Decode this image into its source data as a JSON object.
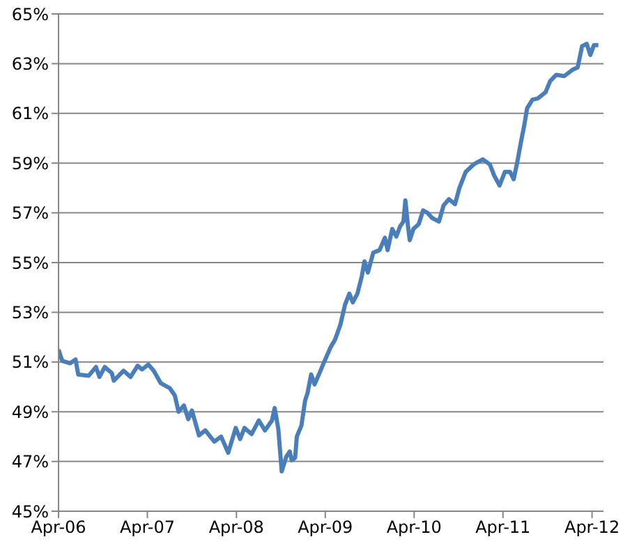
{
  "chart_data": {
    "type": "line",
    "x": [
      "2006-04-01",
      "2006-04-16",
      "2006-05-19",
      "2006-06-10",
      "2006-06-21",
      "2006-08-03",
      "2006-09-02",
      "2006-09-16",
      "2006-10-08",
      "2006-11-06",
      "2006-11-14",
      "2006-12-24",
      "2007-01-22",
      "2007-02-20",
      "2007-03-10",
      "2007-04-05",
      "2007-04-27",
      "2007-05-26",
      "2007-07-02",
      "2007-07-23",
      "2007-08-07",
      "2007-08-29",
      "2007-09-16",
      "2007-10-01",
      "2007-10-30",
      "2007-11-25",
      "2008-01-01",
      "2008-01-29",
      "2008-02-27",
      "2008-03-29",
      "2008-04-16",
      "2008-05-04",
      "2008-06-02",
      "2008-07-02",
      "2008-07-27",
      "2008-08-25",
      "2008-09-05",
      "2008-09-20",
      "2008-10-04",
      "2008-10-23",
      "2008-11-06",
      "2008-11-14",
      "2008-11-28",
      "2008-12-05",
      "2008-12-24",
      "2009-01-08",
      "2009-01-18",
      "2009-02-02",
      "2009-02-16",
      "2009-03-10",
      "2009-03-25",
      "2009-04-23",
      "2009-05-11",
      "2009-06-02",
      "2009-06-21",
      "2009-07-09",
      "2009-07-23",
      "2009-08-11",
      "2009-08-29",
      "2009-09-09",
      "2009-09-23",
      "2009-10-15",
      "2009-11-10",
      "2009-12-02",
      "2009-12-13",
      "2010-01-01",
      "2010-01-18",
      "2010-02-02",
      "2010-02-16",
      "2010-02-24",
      "2010-03-07",
      "2010-03-14",
      "2010-03-29",
      "2010-04-20",
      "2010-05-08",
      "2010-05-26",
      "2010-06-13",
      "2010-07-12",
      "2010-07-31",
      "2010-08-22",
      "2010-09-16",
      "2010-10-04",
      "2010-10-30",
      "2010-12-02",
      "2011-01-08",
      "2011-02-06",
      "2011-02-24",
      "2011-03-18",
      "2011-04-09",
      "2011-04-30",
      "2011-05-15",
      "2011-05-30",
      "2011-06-13",
      "2011-06-28",
      "2011-07-09",
      "2011-07-31",
      "2011-08-22",
      "2011-09-23",
      "2011-10-12",
      "2011-11-06",
      "2011-12-09",
      "2012-01-11",
      "2012-02-02",
      "2012-02-20",
      "2012-03-10",
      "2012-03-25",
      "2012-04-09",
      "2012-04-27"
    ],
    "series": [
      {
        "color": "#4a7ebb",
        "values": [
          51.5,
          51.05,
          50.95,
          51.1,
          50.5,
          50.45,
          50.8,
          50.4,
          50.8,
          50.55,
          50.25,
          50.65,
          50.4,
          50.85,
          50.7,
          50.9,
          50.65,
          50.15,
          49.95,
          49.65,
          49.0,
          49.25,
          48.7,
          49.05,
          48.05,
          48.25,
          47.8,
          48.0,
          47.35,
          48.35,
          47.9,
          48.35,
          48.1,
          48.65,
          48.25,
          48.65,
          49.15,
          48.3,
          46.6,
          47.2,
          47.4,
          47.05,
          47.15,
          48.0,
          48.45,
          49.45,
          49.75,
          50.5,
          50.1,
          50.6,
          50.95,
          51.6,
          51.9,
          52.5,
          53.3,
          53.75,
          53.4,
          53.75,
          54.45,
          55.05,
          54.6,
          55.4,
          55.5,
          56.0,
          55.5,
          56.35,
          56.05,
          56.45,
          56.65,
          57.5,
          56.45,
          55.9,
          56.35,
          56.55,
          57.1,
          57.0,
          56.8,
          56.65,
          57.3,
          57.55,
          57.35,
          58.0,
          58.65,
          58.95,
          59.15,
          58.95,
          58.5,
          58.1,
          58.65,
          58.65,
          58.35,
          59.05,
          59.8,
          60.55,
          61.2,
          61.55,
          61.6,
          61.85,
          62.3,
          62.55,
          62.5,
          62.75,
          62.85,
          63.7,
          63.8,
          63.35,
          63.75,
          63.75
        ]
      }
    ],
    "xlim": [
      "2006-04-01",
      "2012-05-18"
    ],
    "xticks": [
      {
        "value": "2006-04-01",
        "label": "Apr-06"
      },
      {
        "value": "2007-04-01",
        "label": "Apr-07"
      },
      {
        "value": "2008-04-01",
        "label": "Apr-08"
      },
      {
        "value": "2009-04-01",
        "label": "Apr-09"
      },
      {
        "value": "2010-04-01",
        "label": "Apr-10"
      },
      {
        "value": "2011-04-01",
        "label": "Apr-11"
      },
      {
        "value": "2012-04-01",
        "label": "Apr-12"
      }
    ],
    "ylim": [
      45,
      65
    ],
    "yticks": [
      {
        "value": 45,
        "label": "45%"
      },
      {
        "value": 47,
        "label": "47%"
      },
      {
        "value": 49,
        "label": "49%"
      },
      {
        "value": 51,
        "label": "51%"
      },
      {
        "value": 53,
        "label": "53%"
      },
      {
        "value": 55,
        "label": "55%"
      },
      {
        "value": 57,
        "label": "57%"
      },
      {
        "value": 59,
        "label": "59%"
      },
      {
        "value": 61,
        "label": "61%"
      },
      {
        "value": 63,
        "label": "63%"
      },
      {
        "value": 65,
        "label": "65%"
      }
    ],
    "grid": "y",
    "legend": false,
    "marker": "none",
    "line_style": "solid"
  }
}
